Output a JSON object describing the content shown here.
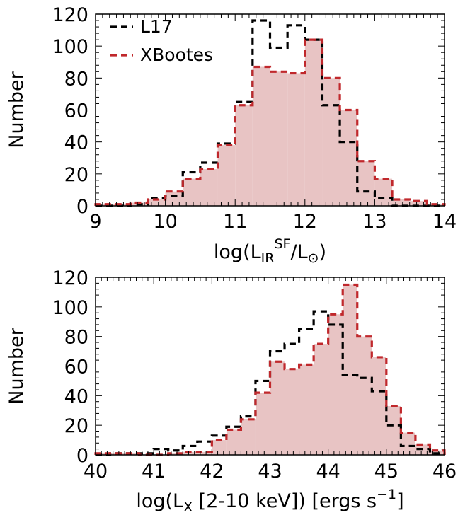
{
  "figure": {
    "title": "",
    "panels_description": "stacked step histograms"
  },
  "chart_data": [
    {
      "type": "bar",
      "histogram": "step",
      "title": "",
      "xlabel": "log(L_IR^SF/L_⊙)",
      "xlabel_parts": {
        "prefix": "log(L",
        "sub": "IR",
        "sup": "SF",
        "mid": "/L",
        "sub2": "⊙",
        "suffix": ")"
      },
      "ylabel": "Number",
      "xlim": [
        9,
        14
      ],
      "ylim": [
        0,
        120
      ],
      "xticks": [
        9,
        10,
        11,
        12,
        13,
        14
      ],
      "xtick_labels": [
        "9",
        "10",
        "11",
        "12",
        "13",
        "14"
      ],
      "yticks": [
        0,
        20,
        40,
        60,
        80,
        100,
        120
      ],
      "ytick_labels": [
        "0",
        "20",
        "40",
        "60",
        "80",
        "100",
        "120"
      ],
      "bin_edges": [
        9.0,
        9.25,
        9.5,
        9.75,
        10.0,
        10.25,
        10.5,
        10.75,
        11.0,
        11.25,
        11.5,
        11.75,
        12.0,
        12.25,
        12.5,
        12.75,
        13.0,
        13.25,
        13.5,
        13.75,
        14.0
      ],
      "legend": {
        "position": "top-left",
        "entries": [
          "L17",
          "XBootes"
        ]
      },
      "grid": false,
      "series": [
        {
          "name": "L17",
          "style": "dashed",
          "fill": false,
          "color": "#000000",
          "values": [
            0,
            0,
            1,
            5,
            6,
            21,
            27,
            39,
            65,
            116,
            99,
            113,
            104,
            63,
            40,
            9,
            5,
            0,
            0,
            0
          ]
        },
        {
          "name": "XBootes",
          "style": "dashed",
          "fill": true,
          "color": "#c0282c",
          "fill_color": "#e8c4c4",
          "values": [
            1,
            1,
            2,
            4,
            9,
            17,
            23,
            38,
            63,
            87,
            84,
            83,
            104,
            80,
            60,
            28,
            17,
            4,
            3,
            1
          ]
        }
      ]
    },
    {
      "type": "bar",
      "histogram": "step",
      "title": "",
      "xlabel": "log(L_X [2-10 keV]) [ergs s^-1]",
      "xlabel_parts": {
        "prefix": "log(L",
        "sub": "X",
        "suffix": " [2-10 keV]) [ergs s",
        "sup": "−1",
        "suffix2": "]"
      },
      "ylabel": "Number",
      "xlim": [
        40,
        46
      ],
      "ylim": [
        0,
        120
      ],
      "xticks": [
        40,
        41,
        42,
        43,
        44,
        45,
        46
      ],
      "xtick_labels": [
        "40",
        "41",
        "42",
        "43",
        "44",
        "45",
        "46"
      ],
      "yticks": [
        0,
        20,
        40,
        60,
        80,
        100,
        120
      ],
      "ytick_labels": [
        "0",
        "20",
        "40",
        "60",
        "80",
        "100",
        "120"
      ],
      "bin_edges": [
        40.0,
        40.25,
        40.5,
        40.75,
        41.0,
        41.25,
        41.5,
        41.75,
        42.0,
        42.25,
        42.5,
        42.75,
        43.0,
        43.25,
        43.5,
        43.75,
        44.0,
        44.25,
        44.5,
        44.75,
        45.0,
        45.25,
        45.5,
        45.75,
        46.0
      ],
      "grid": false,
      "series": [
        {
          "name": "L17",
          "style": "dashed",
          "fill": false,
          "color": "#000000",
          "values": [
            0,
            1,
            1,
            1,
            4,
            3,
            6,
            9,
            13,
            19,
            26,
            50,
            70,
            75,
            85,
            97,
            88,
            54,
            52,
            43,
            20,
            6,
            4,
            1
          ]
        },
        {
          "name": "XBootes",
          "style": "dashed",
          "fill": true,
          "color": "#c0282c",
          "fill_color": "#e8c4c4",
          "values": [
            1,
            1,
            1,
            0,
            0,
            1,
            2,
            2,
            10,
            17,
            24,
            42,
            63,
            58,
            61,
            75,
            95,
            115,
            80,
            66,
            33,
            15,
            7,
            3
          ]
        }
      ]
    }
  ]
}
